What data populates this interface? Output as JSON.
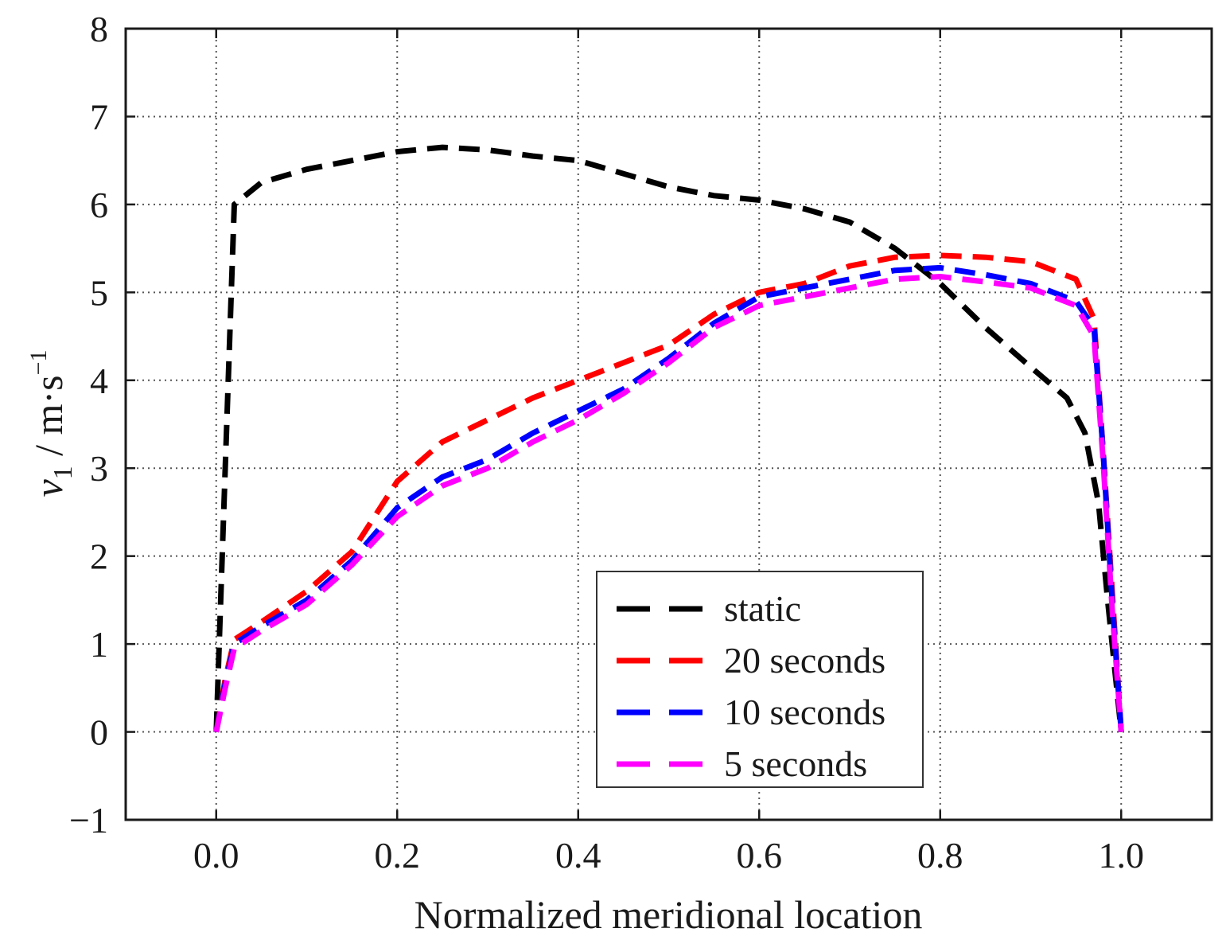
{
  "chart_data": {
    "type": "line",
    "title": "",
    "xlabel": "Normalized meridional location",
    "ylabel": {
      "symbol": "v",
      "subscript": "1",
      "units": " / m·s",
      "units_exponent": "−1"
    },
    "xlim": [
      -0.1,
      1.1
    ],
    "ylim": [
      -1,
      8
    ],
    "x_ticks": [
      {
        "value": 0.0,
        "label": "0.0"
      },
      {
        "value": 0.2,
        "label": "0.2"
      },
      {
        "value": 0.4,
        "label": "0.4"
      },
      {
        "value": 0.6,
        "label": "0.6"
      },
      {
        "value": 0.8,
        "label": "0.8"
      },
      {
        "value": 1.0,
        "label": "1.0"
      }
    ],
    "y_ticks": [
      {
        "value": -1,
        "label": "−1"
      },
      {
        "value": 0,
        "label": "0"
      },
      {
        "value": 1,
        "label": "1"
      },
      {
        "value": 2,
        "label": "2"
      },
      {
        "value": 3,
        "label": "3"
      },
      {
        "value": 4,
        "label": "4"
      },
      {
        "value": 5,
        "label": "5"
      },
      {
        "value": 6,
        "label": "6"
      },
      {
        "value": 7,
        "label": "7"
      },
      {
        "value": 8,
        "label": "8"
      }
    ],
    "grid": true,
    "legend_position": "bottom-right",
    "series": [
      {
        "name": "static",
        "color": "#000000",
        "x": [
          0.0,
          0.005,
          0.01,
          0.015,
          0.02,
          0.05,
          0.1,
          0.15,
          0.2,
          0.25,
          0.3,
          0.35,
          0.4,
          0.45,
          0.5,
          0.55,
          0.6,
          0.65,
          0.7,
          0.75,
          0.8,
          0.85,
          0.9,
          0.94,
          0.96,
          0.975,
          0.985,
          0.995,
          1.0
        ],
        "y": [
          0.0,
          1.5,
          3.0,
          4.5,
          6.0,
          6.25,
          6.4,
          6.5,
          6.6,
          6.65,
          6.62,
          6.55,
          6.5,
          6.35,
          6.2,
          6.1,
          6.05,
          5.95,
          5.8,
          5.5,
          5.1,
          4.6,
          4.15,
          3.8,
          3.4,
          2.6,
          1.5,
          0.5,
          0.0
        ]
      },
      {
        "name": "20 seconds",
        "color": "#ff0000",
        "x": [
          0.0,
          0.01,
          0.02,
          0.05,
          0.1,
          0.15,
          0.2,
          0.25,
          0.3,
          0.35,
          0.4,
          0.45,
          0.5,
          0.55,
          0.6,
          0.65,
          0.7,
          0.75,
          0.8,
          0.85,
          0.9,
          0.95,
          0.97,
          0.98,
          0.99,
          1.0
        ],
        "y": [
          0.0,
          0.6,
          1.05,
          1.25,
          1.6,
          2.05,
          2.85,
          3.3,
          3.55,
          3.8,
          4.0,
          4.2,
          4.4,
          4.75,
          5.0,
          5.1,
          5.3,
          5.4,
          5.42,
          5.4,
          5.35,
          5.15,
          4.7,
          3.2,
          1.6,
          0.0
        ]
      },
      {
        "name": "10 seconds",
        "color": "#0000ff",
        "x": [
          0.0,
          0.01,
          0.02,
          0.05,
          0.1,
          0.15,
          0.2,
          0.25,
          0.3,
          0.35,
          0.4,
          0.45,
          0.5,
          0.55,
          0.6,
          0.65,
          0.7,
          0.75,
          0.8,
          0.85,
          0.9,
          0.95,
          0.97,
          0.98,
          0.99,
          1.0
        ],
        "y": [
          0.0,
          0.55,
          1.0,
          1.2,
          1.5,
          1.95,
          2.55,
          2.9,
          3.1,
          3.4,
          3.65,
          3.9,
          4.25,
          4.65,
          4.95,
          5.05,
          5.15,
          5.25,
          5.28,
          5.2,
          5.1,
          4.9,
          4.6,
          3.2,
          1.5,
          0.0
        ]
      },
      {
        "name": "5 seconds",
        "color": "#ff00ff",
        "x": [
          0.0,
          0.01,
          0.02,
          0.05,
          0.1,
          0.15,
          0.2,
          0.25,
          0.3,
          0.35,
          0.4,
          0.45,
          0.5,
          0.55,
          0.6,
          0.65,
          0.7,
          0.75,
          0.8,
          0.85,
          0.9,
          0.95,
          0.97,
          0.98,
          0.99,
          1.0
        ],
        "y": [
          0.0,
          0.5,
          0.95,
          1.15,
          1.45,
          1.9,
          2.45,
          2.8,
          3.0,
          3.3,
          3.55,
          3.85,
          4.2,
          4.6,
          4.85,
          4.95,
          5.05,
          5.15,
          5.18,
          5.12,
          5.05,
          4.85,
          4.5,
          3.1,
          1.4,
          0.0
        ]
      }
    ]
  }
}
